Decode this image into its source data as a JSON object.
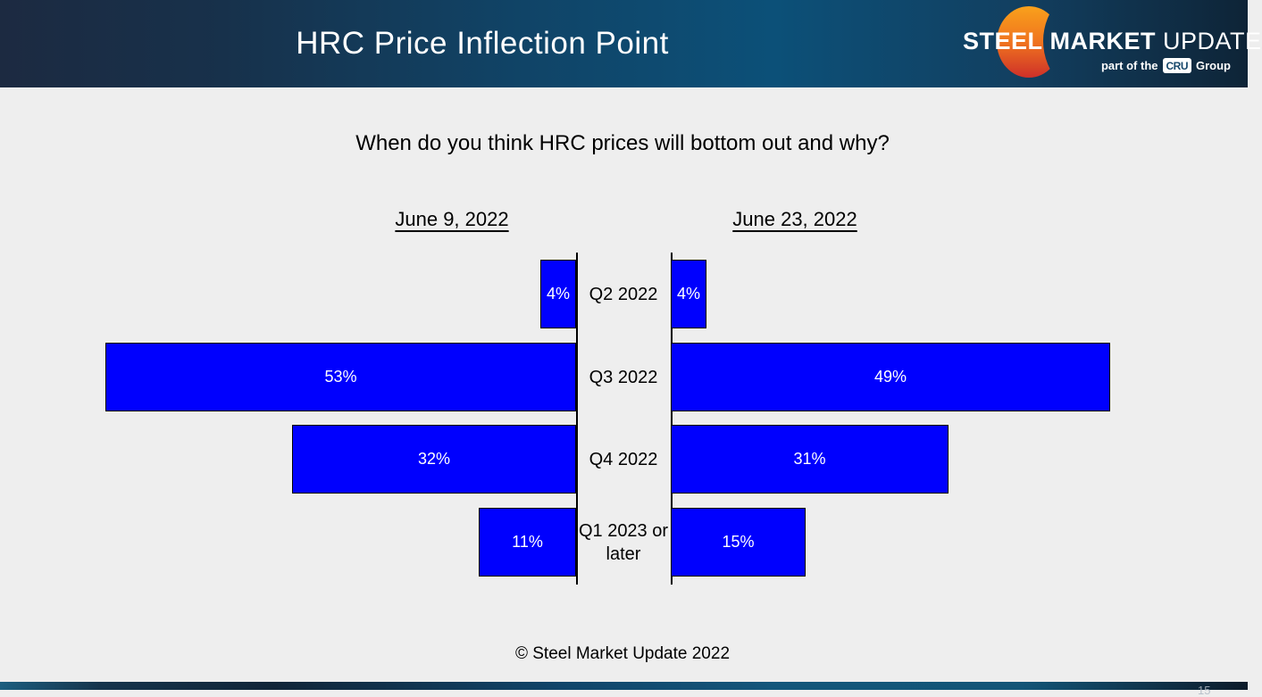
{
  "header": {
    "title": "HRC Price Inflection Point",
    "logo": {
      "brand_steel": "STEEL",
      "brand_market": "MARKET",
      "brand_update": "UPDATE",
      "tagline_prefix": "part of the",
      "badge": "CRU",
      "tagline_suffix": "Group"
    }
  },
  "question": "When do you think HRC prices will bottom out and why?",
  "chart_data": {
    "type": "bar",
    "variant": "diverging-tornado",
    "title": "When do you think HRC prices will bottom out and why?",
    "categories": [
      "Q2 2022",
      "Q3 2022",
      "Q4 2022",
      "Q1 2023 or later"
    ],
    "series": [
      {
        "name": "June 9, 2022",
        "side": "left",
        "values": [
          4,
          53,
          32,
          11
        ]
      },
      {
        "name": "June 23, 2022",
        "side": "right",
        "values": [
          4,
          49,
          31,
          15
        ]
      }
    ],
    "value_suffix": "%",
    "xlim_percent": [
      0,
      53
    ],
    "grid": false,
    "legend_position": "column-headers-above",
    "bar_color": "#0000FE",
    "bar_border_color": "#000000",
    "bar_label_color": "#FFFFFF",
    "axis_line_color": "#000000"
  },
  "footer": {
    "copyright": "© Steel Market Update 2022",
    "page_number": "15"
  },
  "colors": {
    "slide_background": "#EEEEEE",
    "header_gradient_dark": "#1C2A41",
    "header_gradient_teal": "#0C5078",
    "crescent_orange": "#F9A11B",
    "crescent_red": "#CE3029",
    "cru_badge_text": "#17486B"
  }
}
